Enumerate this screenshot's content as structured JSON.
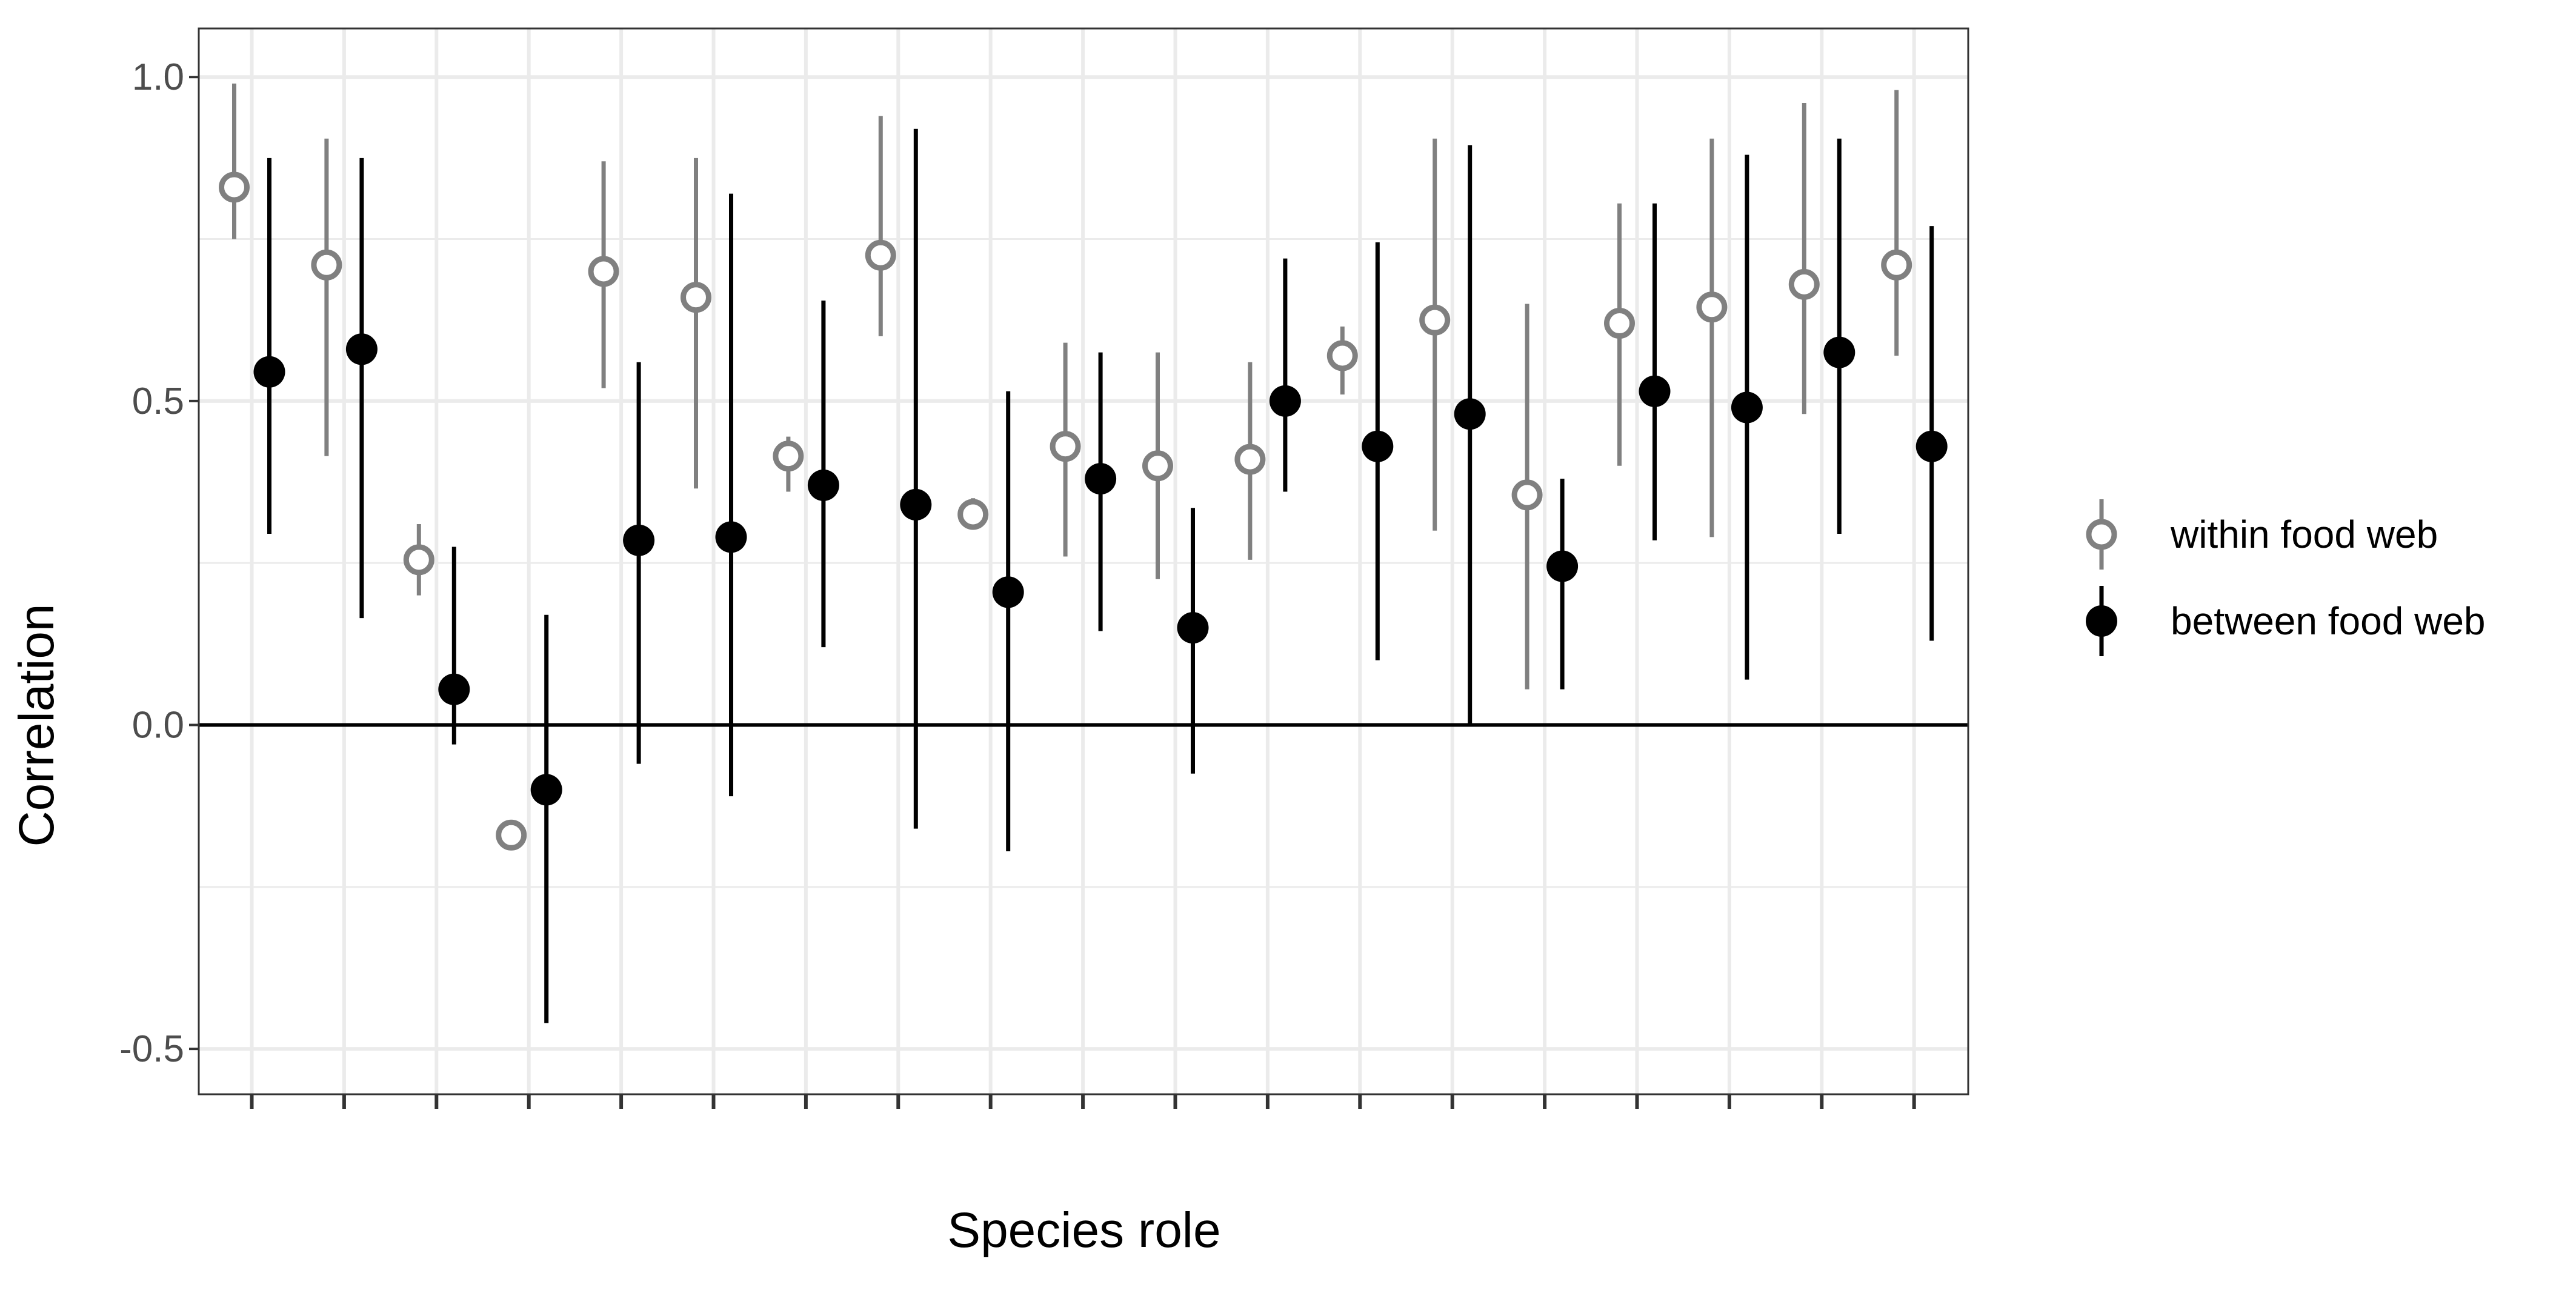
{
  "chart_data": {
    "type": "scatter",
    "title": "",
    "xlabel": "Species role",
    "ylabel": "Correlation",
    "ylim": [
      -0.57,
      1.075
    ],
    "yticks": [
      -0.5,
      0.0,
      0.5,
      1.0
    ],
    "ytick_labels": [
      "-0.5",
      "0.0",
      "0.5",
      "1.0"
    ],
    "x_categories": 19,
    "grid": true,
    "reference_line_y": 0.0,
    "legend_position": "right",
    "series": [
      {
        "name": "within food web",
        "color": "#808080",
        "marker": "open-circle",
        "points": [
          {
            "x": 1,
            "y": 0.83,
            "lo": 0.75,
            "hi": 0.99
          },
          {
            "x": 2,
            "y": 0.71,
            "lo": 0.415,
            "hi": 0.905
          },
          {
            "x": 3,
            "y": 0.255,
            "lo": 0.2,
            "hi": 0.31
          },
          {
            "x": 4,
            "y": -0.17,
            "lo": -0.17,
            "hi": -0.17
          },
          {
            "x": 5,
            "y": 0.7,
            "lo": 0.52,
            "hi": 0.87
          },
          {
            "x": 6,
            "y": 0.66,
            "lo": 0.365,
            "hi": 0.875
          },
          {
            "x": 7,
            "y": 0.415,
            "lo": 0.36,
            "hi": 0.445
          },
          {
            "x": 8,
            "y": 0.725,
            "lo": 0.6,
            "hi": 0.94
          },
          {
            "x": 9,
            "y": 0.325,
            "lo": 0.315,
            "hi": 0.35
          },
          {
            "x": 10,
            "y": 0.43,
            "lo": 0.26,
            "hi": 0.59
          },
          {
            "x": 11,
            "y": 0.4,
            "lo": 0.225,
            "hi": 0.575
          },
          {
            "x": 12,
            "y": 0.41,
            "lo": 0.255,
            "hi": 0.56
          },
          {
            "x": 13,
            "y": 0.57,
            "lo": 0.51,
            "hi": 0.615
          },
          {
            "x": 14,
            "y": 0.625,
            "lo": 0.3,
            "hi": 0.905
          },
          {
            "x": 15,
            "y": 0.355,
            "lo": 0.055,
            "hi": 0.65
          },
          {
            "x": 16,
            "y": 0.62,
            "lo": 0.4,
            "hi": 0.805
          },
          {
            "x": 17,
            "y": 0.645,
            "lo": 0.29,
            "hi": 0.905
          },
          {
            "x": 18,
            "y": 0.68,
            "lo": 0.48,
            "hi": 0.96
          },
          {
            "x": 19,
            "y": 0.71,
            "lo": 0.57,
            "hi": 0.98
          }
        ]
      },
      {
        "name": "between food web",
        "color": "#000000",
        "marker": "filled-circle",
        "points": [
          {
            "x": 1,
            "y": 0.545,
            "lo": 0.295,
            "hi": 0.875
          },
          {
            "x": 2,
            "y": 0.58,
            "lo": 0.165,
            "hi": 0.875
          },
          {
            "x": 3,
            "y": 0.055,
            "lo": -0.03,
            "hi": 0.275
          },
          {
            "x": 4,
            "y": -0.1,
            "lo": -0.46,
            "hi": 0.17
          },
          {
            "x": 5,
            "y": 0.285,
            "lo": -0.06,
            "hi": 0.56
          },
          {
            "x": 6,
            "y": 0.29,
            "lo": -0.11,
            "hi": 0.82
          },
          {
            "x": 7,
            "y": 0.37,
            "lo": 0.12,
            "hi": 0.655
          },
          {
            "x": 8,
            "y": 0.34,
            "lo": -0.16,
            "hi": 0.92
          },
          {
            "x": 9,
            "y": 0.205,
            "lo": -0.195,
            "hi": 0.515
          },
          {
            "x": 10,
            "y": 0.38,
            "lo": 0.145,
            "hi": 0.575
          },
          {
            "x": 11,
            "y": 0.15,
            "lo": -0.075,
            "hi": 0.335
          },
          {
            "x": 12,
            "y": 0.5,
            "lo": 0.36,
            "hi": 0.72
          },
          {
            "x": 13,
            "y": 0.43,
            "lo": 0.1,
            "hi": 0.745
          },
          {
            "x": 14,
            "y": 0.48,
            "lo": 0.0,
            "hi": 0.895
          },
          {
            "x": 15,
            "y": 0.245,
            "lo": 0.055,
            "hi": 0.38
          },
          {
            "x": 16,
            "y": 0.515,
            "lo": 0.285,
            "hi": 0.805
          },
          {
            "x": 17,
            "y": 0.49,
            "lo": 0.07,
            "hi": 0.88
          },
          {
            "x": 18,
            "y": 0.575,
            "lo": 0.295,
            "hi": 0.905
          },
          {
            "x": 19,
            "y": 0.43,
            "lo": 0.13,
            "hi": 0.77
          }
        ]
      }
    ]
  }
}
